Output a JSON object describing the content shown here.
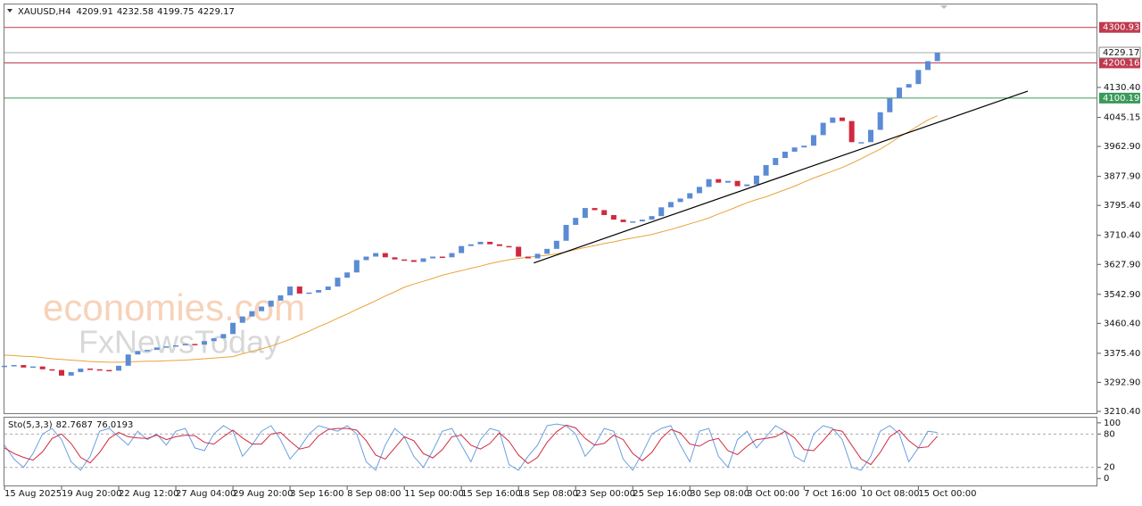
{
  "chart_data": [
    {
      "type": "candlestick",
      "header": {
        "symbol": "XAUUSD,H4",
        "open": 4209.91,
        "high": 4232.58,
        "low": 4199.75,
        "close": 4229.17
      },
      "categories": [
        "15 Aug 2025",
        null,
        null,
        null,
        null,
        null,
        "19 Aug 20:00",
        null,
        null,
        null,
        null,
        null,
        "22 Aug 12:00",
        null,
        null,
        null,
        null,
        null,
        "27 Aug 04:00",
        null,
        null,
        null,
        null,
        null,
        "29 Aug 20:00",
        null,
        null,
        null,
        null,
        null,
        "3 Sep 16:00",
        null,
        null,
        null,
        null,
        null,
        "8 Sep 08:00",
        null,
        null,
        null,
        null,
        null,
        "11 Sep 00:00",
        null,
        null,
        null,
        null,
        null,
        "15 Sep 16:00",
        null,
        null,
        null,
        null,
        null,
        "18 Sep 08:00",
        null,
        null,
        null,
        null,
        null,
        "23 Sep 00:00",
        null,
        null,
        null,
        null,
        null,
        "25 Sep 16:00",
        null,
        null,
        null,
        null,
        null,
        "30 Sep 08:00",
        null,
        null,
        null,
        null,
        null,
        "3 Oct 00:00",
        null,
        null,
        null,
        null,
        null,
        "7 Oct 16:00",
        null,
        null,
        null,
        null,
        null,
        "10 Oct 08:00",
        null,
        null,
        null,
        null,
        null,
        "15 Oct 00:00",
        null,
        null
      ],
      "values": [
        3340,
        3342,
        3335,
        3338,
        3330,
        3328,
        3312,
        3322,
        3332,
        3330,
        3328,
        3326,
        3340,
        3372,
        3382,
        3385,
        3392,
        3395,
        3398,
        3402,
        3400,
        3410,
        3418,
        3430,
        3462,
        3480,
        3495,
        3508,
        3525,
        3540,
        3565,
        3545,
        3548,
        3555,
        3565,
        3590,
        3605,
        3640,
        3650,
        3660,
        3648,
        3642,
        3640,
        3635,
        3645,
        3650,
        3648,
        3660,
        3680,
        3685,
        3692,
        3685,
        3680,
        3678,
        3650,
        3645,
        3658,
        3672,
        3695,
        3740,
        3760,
        3788,
        3782,
        3768,
        3755,
        3748,
        3750,
        3755,
        3765,
        3790,
        3805,
        3815,
        3830,
        3848,
        3870,
        3860,
        3865,
        3850,
        3855,
        3880,
        3910,
        3930,
        3948,
        3960,
        3965,
        3995,
        4030,
        4045,
        4035,
        3975,
        3975,
        4010,
        4060,
        4100,
        4130,
        4140,
        4180,
        4205,
        4229.17
      ],
      "color_up": "#5b8bd4",
      "color_down": "#d1283f",
      "ma": {
        "color": "#e8a33c",
        "values": [
          3370,
          3369,
          3367,
          3366,
          3363,
          3360,
          3358,
          3356,
          3354,
          3352,
          3351,
          3350,
          3350,
          3351,
          3352,
          3353,
          3353,
          3354,
          3355,
          3356,
          3358,
          3360,
          3362,
          3364,
          3366,
          3374,
          3381,
          3388,
          3396,
          3405,
          3415,
          3427,
          3438,
          3451,
          3462,
          3475,
          3487,
          3500,
          3512,
          3525,
          3538,
          3550,
          3563,
          3572,
          3580,
          3588,
          3597,
          3604,
          3610,
          3617,
          3623,
          3630,
          3636,
          3641,
          3645,
          3648,
          3651,
          3654,
          3658,
          3663,
          3670,
          3676,
          3681,
          3687,
          3692,
          3698,
          3703,
          3708,
          3713,
          3720,
          3727,
          3735,
          3743,
          3751,
          3760,
          3771,
          3781,
          3792,
          3803,
          3812,
          3820,
          3830,
          3840,
          3850,
          3862,
          3873,
          3883,
          3893,
          3903,
          3915,
          3928,
          3942,
          3955,
          3972,
          3990,
          4005,
          4022,
          4038,
          4050
        ]
      },
      "trendline": {
        "color": "#000000",
        "x": [
          55.6,
          107.5
        ],
        "values": [
          3632,
          4120
        ]
      },
      "levels": [
        {
          "value": 4300.93,
          "color": "#c0394f"
        },
        {
          "value": 4200.16,
          "color": "#c0394f"
        },
        {
          "value": 4100.19,
          "color": "#3a9a5b"
        }
      ],
      "ylim": [
        3205.3,
        4368.6
      ],
      "yticks": [
        {
          "value": 4130.4,
          "label": "4130.40"
        },
        4045.15,
        {
          "value": 3962.9,
          "label": "3962.90"
        },
        {
          "value": 3877.9,
          "label": "3877.90"
        },
        {
          "value": 3795.4,
          "label": "3795.40"
        },
        {
          "value": 3710.4,
          "label": "3710.40"
        },
        {
          "value": 3627.9,
          "label": "3627.90"
        },
        {
          "value": 3542.9,
          "label": "3542.90"
        },
        {
          "value": 3460.4,
          "label": "3460.40"
        },
        {
          "value": 3375.4,
          "label": "3375.40"
        },
        {
          "value": 3292.9,
          "label": "3292.90"
        },
        {
          "value": 3210.4,
          "label": "3210.40"
        }
      ],
      "watermarks": [
        "economies.com",
        "FxNewsToday"
      ]
    },
    {
      "type": "line",
      "title": "Sto(5,3,3)",
      "series": [
        {
          "color": "#6a9fe0",
          "values": [
            60,
            35,
            20,
            45,
            80,
            90,
            70,
            30,
            15,
            40,
            85,
            90,
            75,
            60,
            85,
            70,
            80,
            60,
            85,
            90,
            55,
            50,
            80,
            95,
            85,
            40,
            60,
            85,
            95,
            70,
            35,
            55,
            80,
            95,
            90,
            85,
            95,
            80,
            30,
            15,
            60,
            90,
            75,
            40,
            20,
            50,
            85,
            90,
            60,
            30,
            70,
            90,
            85,
            25,
            15,
            40,
            60,
            95,
            98,
            95,
            80,
            40,
            60,
            90,
            85,
            35,
            15,
            45,
            80,
            90,
            95,
            60,
            30,
            85,
            90,
            40,
            20,
            70,
            85,
            55,
            75,
            95,
            85,
            40,
            30,
            80,
            95,
            90,
            70,
            20,
            15,
            40,
            85,
            95,
            80,
            30,
            55,
            85,
            82.7687
          ]
        },
        {
          "color": "#d1283f",
          "values": [
            55,
            45,
            38,
            33,
            48,
            72,
            80,
            63,
            38,
            28,
            47,
            72,
            83,
            75,
            73,
            72,
            78,
            70,
            75,
            78,
            77,
            65,
            62,
            75,
            87,
            73,
            62,
            62,
            80,
            83,
            67,
            53,
            57,
            77,
            88,
            90,
            90,
            87,
            68,
            42,
            35,
            55,
            75,
            68,
            45,
            37,
            52,
            75,
            78,
            60,
            53,
            63,
            82,
            67,
            42,
            27,
            38,
            65,
            84,
            96,
            91,
            72,
            60,
            63,
            78,
            70,
            45,
            32,
            47,
            72,
            88,
            82,
            62,
            58,
            68,
            72,
            50,
            43,
            58,
            70,
            72,
            75,
            85,
            73,
            52,
            50,
            68,
            88,
            85,
            60,
            35,
            25,
            47,
            75,
            87,
            68,
            55,
            57,
            76.0193
          ]
        }
      ],
      "levels": [
        80,
        20
      ],
      "ylim": [
        -12.5,
        109.4
      ],
      "yticks": [
        100,
        80,
        20,
        0
      ]
    }
  ]
}
